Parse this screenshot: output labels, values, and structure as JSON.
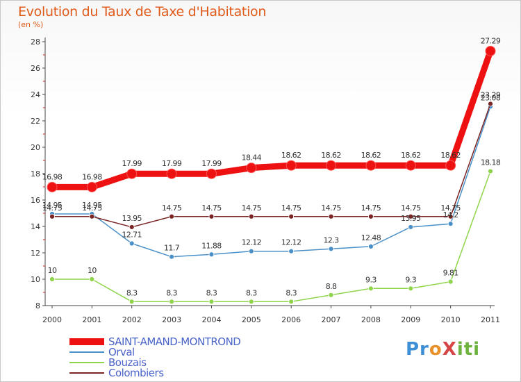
{
  "title": "Evolution du Taux de Taxe d'Habitation",
  "subtitle": "(en %)",
  "logo": {
    "text": "ProXiti"
  },
  "chart_data": {
    "type": "line",
    "title": "Evolution du Taux de Taxe d'Habitation",
    "ylabel": "(en %)",
    "xlabel": "",
    "x": [
      "2000",
      "2001",
      "2002",
      "2003",
      "2004",
      "2005",
      "2006",
      "2007",
      "2008",
      "2009",
      "2010",
      "2011"
    ],
    "ylim": [
      8,
      28
    ],
    "yticks": [
      8,
      10,
      12,
      14,
      16,
      18,
      20,
      22,
      24,
      26,
      28
    ],
    "grid": false,
    "legend": "bottom-left",
    "series": [
      {
        "name": "SAINT-AMAND-MONTROND",
        "color": "#ee1111",
        "values": [
          16.98,
          16.98,
          17.99,
          17.99,
          17.99,
          18.44,
          18.62,
          18.62,
          18.62,
          18.62,
          18.62,
          27.29
        ],
        "labels": [
          "16.98",
          "16.98",
          "17.99",
          "17.99",
          "17.99",
          "18.44",
          "18.62",
          "18.62",
          "18.62",
          "18.62",
          "18.62",
          "27.29"
        ]
      },
      {
        "name": "Orval",
        "color": "#4a90c8",
        "values": [
          14.95,
          14.95,
          12.71,
          11.7,
          11.88,
          12.12,
          12.12,
          12.3,
          12.48,
          13.95,
          14.2,
          23.08
        ],
        "labels": [
          "14.95",
          "14.95",
          "12.71",
          "11.7",
          "11.88",
          "12.12",
          "12.12",
          "12.3",
          "12.48",
          "13.95",
          "14.2",
          "23.08"
        ]
      },
      {
        "name": "Bouzais",
        "color": "#8fd44a",
        "values": [
          10,
          10,
          8.3,
          8.3,
          8.3,
          8.3,
          8.3,
          8.8,
          9.3,
          9.3,
          9.81,
          18.18
        ],
        "labels": [
          "10",
          "10",
          "8.3",
          "8.3",
          "8.3",
          "8.3",
          "8.3",
          "8.8",
          "9.3",
          "9.3",
          "9.81",
          "18.18"
        ]
      },
      {
        "name": "Colombiers",
        "color": "#7a2424",
        "values": [
          14.75,
          14.75,
          13.95,
          14.75,
          14.75,
          14.75,
          14.75,
          14.75,
          14.75,
          14.75,
          14.75,
          23.29
        ],
        "labels": [
          "14.75",
          "14.75",
          "13.95",
          "14.75",
          "14.75",
          "14.75",
          "14.75",
          "14.75",
          "14.75",
          "14.75",
          "14.75",
          "23.29"
        ]
      }
    ]
  }
}
